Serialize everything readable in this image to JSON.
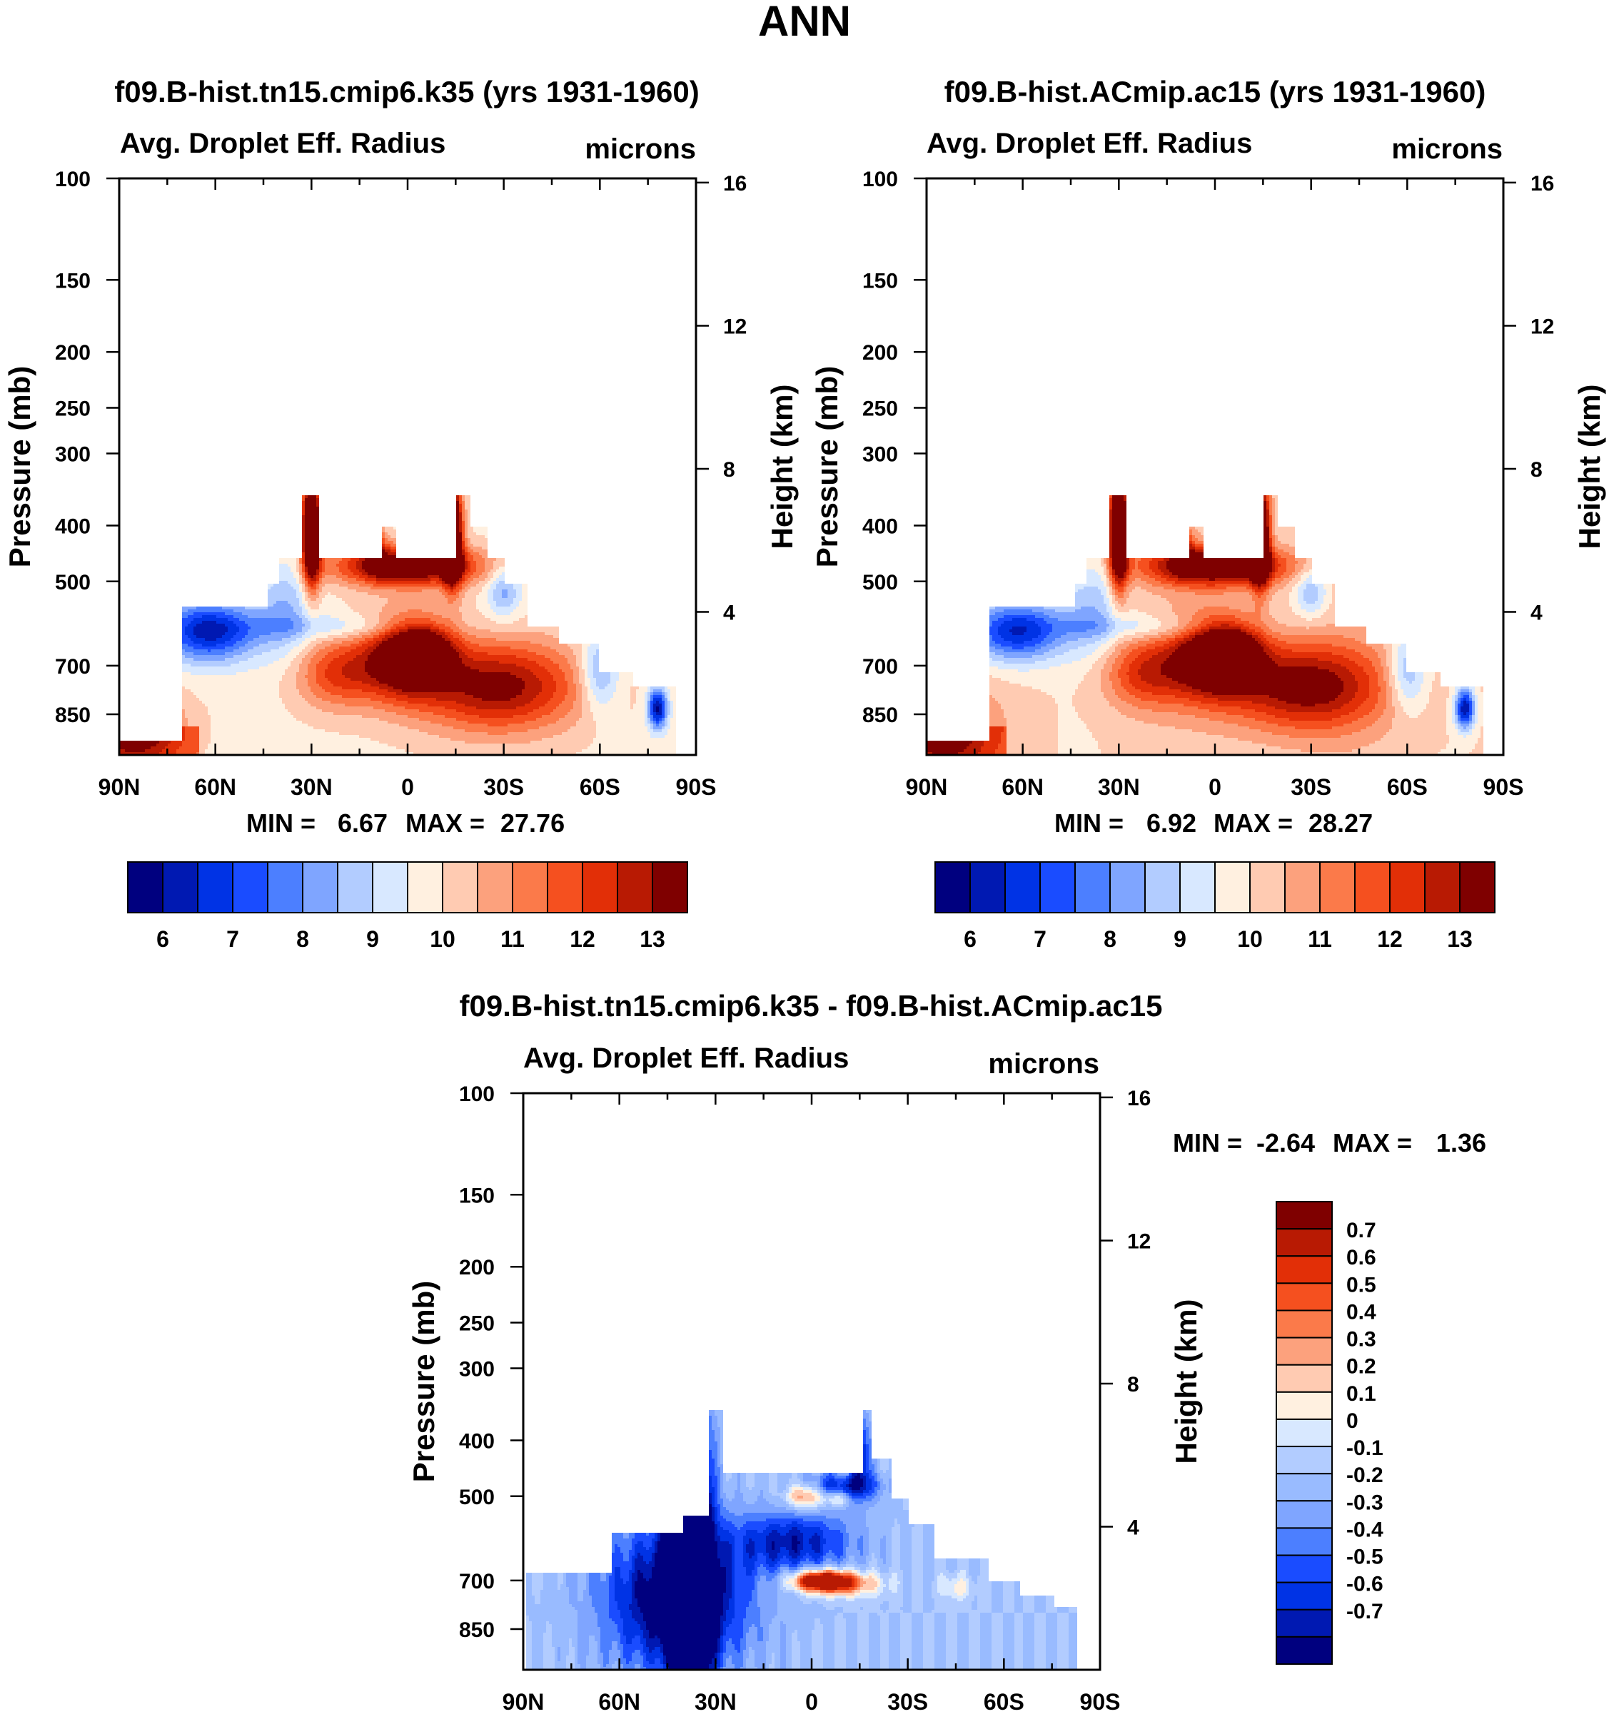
{
  "figure_title": "ANN",
  "colors": {
    "abs_palette": [
      "#00007f",
      "#0019b2",
      "#0033e5",
      "#1a4cff",
      "#4c7fff",
      "#7fa5ff",
      "#b2ccff",
      "#d8e8ff",
      "#fff0e0",
      "#ffcbb2",
      "#fca17d",
      "#fb7a4a",
      "#f5501f",
      "#e22f07",
      "#b81a03",
      "#7f0000"
    ],
    "diff_palette": [
      "#00007f",
      "#0019b2",
      "#0033e5",
      "#1a4cff",
      "#4c7fff",
      "#7fa5ff",
      "#99bbff",
      "#b2ccff",
      "#d8e8ff",
      "#fff0e0",
      "#ffcbb2",
      "#fca17d",
      "#fb7a4a",
      "#f5501f",
      "#e22f07",
      "#b81a03",
      "#7f0000"
    ]
  },
  "chart_data": [
    {
      "id": "panel1",
      "type": "heatmap",
      "title": "f09.B-hist.tn15.cmip6.k35 (yrs 1931-1960)",
      "subtitle_left": "Avg. Droplet Eff. Radius",
      "subtitle_right": "microns",
      "ylabel": "Pressure (mb)",
      "ylabel_right": "Height (km)",
      "x_ticks": [
        "90N",
        "60N",
        "30N",
        "0",
        "30S",
        "60S",
        "90S"
      ],
      "xlim": [
        90,
        -90
      ],
      "y_ticks": [
        "100",
        "150",
        "200",
        "250",
        "300",
        "400",
        "500",
        "700",
        "850"
      ],
      "y_tick_values": [
        100,
        150,
        200,
        250,
        300,
        400,
        500,
        700,
        850
      ],
      "ylim": [
        100,
        1000
      ],
      "height_ticks": [
        "16",
        "12",
        "8",
        "4"
      ],
      "height_tick_values": [
        16,
        12,
        8,
        4
      ],
      "stats": {
        "min_label": "MIN =",
        "min": "6.67",
        "max_label": "MAX =",
        "max": "27.76"
      },
      "colorbar": {
        "orientation": "horizontal",
        "labels": [
          "6",
          "7",
          "8",
          "9",
          "10",
          "11",
          "12",
          "13"
        ]
      },
      "levels": [
        5.75,
        6.25,
        6.75,
        7.25,
        7.75,
        8.25,
        8.75,
        9.25,
        9.75,
        10.25,
        10.75,
        11.25,
        11.75,
        12.25,
        12.75,
        13.25
      ]
    },
    {
      "id": "panel2",
      "type": "heatmap",
      "title": "f09.B-hist.ACmip.ac15 (yrs 1931-1960)",
      "subtitle_left": "Avg. Droplet Eff. Radius",
      "subtitle_right": "microns",
      "ylabel": "Pressure (mb)",
      "ylabel_right": "Height (km)",
      "x_ticks": [
        "90N",
        "60N",
        "30N",
        "0",
        "30S",
        "60S",
        "90S"
      ],
      "xlim": [
        90,
        -90
      ],
      "y_ticks": [
        "100",
        "150",
        "200",
        "250",
        "300",
        "400",
        "500",
        "700",
        "850"
      ],
      "y_tick_values": [
        100,
        150,
        200,
        250,
        300,
        400,
        500,
        700,
        850
      ],
      "ylim": [
        100,
        1000
      ],
      "height_ticks": [
        "16",
        "12",
        "8",
        "4"
      ],
      "height_tick_values": [
        16,
        12,
        8,
        4
      ],
      "stats": {
        "min_label": "MIN =",
        "min": "6.92",
        "max_label": "MAX =",
        "max": "28.27"
      },
      "colorbar": {
        "orientation": "horizontal",
        "labels": [
          "6",
          "7",
          "8",
          "9",
          "10",
          "11",
          "12",
          "13"
        ]
      },
      "levels": [
        5.75,
        6.25,
        6.75,
        7.25,
        7.75,
        8.25,
        8.75,
        9.25,
        9.75,
        10.25,
        10.75,
        11.25,
        11.75,
        12.25,
        12.75,
        13.25
      ]
    },
    {
      "id": "panel3",
      "type": "heatmap",
      "title": "f09.B-hist.tn15.cmip6.k35 - f09.B-hist.ACmip.ac15",
      "subtitle_left": "Avg. Droplet Eff. Radius",
      "subtitle_right": "microns",
      "ylabel": "Pressure (mb)",
      "ylabel_right": "Height (km)",
      "x_ticks": [
        "90N",
        "60N",
        "30N",
        "0",
        "30S",
        "60S",
        "90S"
      ],
      "xlim": [
        90,
        -90
      ],
      "y_ticks": [
        "100",
        "150",
        "200",
        "250",
        "300",
        "400",
        "500",
        "700",
        "850"
      ],
      "y_tick_values": [
        100,
        150,
        200,
        250,
        300,
        400,
        500,
        700,
        850
      ],
      "ylim": [
        100,
        1000
      ],
      "height_ticks": [
        "16",
        "12",
        "8",
        "4"
      ],
      "height_tick_values": [
        16,
        12,
        8,
        4
      ],
      "stats": {
        "min_label": "MIN =",
        "min": "-2.64",
        "max_label": "MAX =",
        "max": "1.36"
      },
      "colorbar": {
        "orientation": "vertical",
        "labels": [
          "0.7",
          "0.6",
          "0.5",
          "0.4",
          "0.3",
          "0.2",
          "0.1",
          "0",
          "-0.1",
          "-0.2",
          "-0.3",
          "-0.4",
          "-0.5",
          "-0.6",
          "-0.7"
        ]
      },
      "levels": [
        -0.7,
        -0.6,
        -0.5,
        -0.4,
        -0.3,
        -0.2,
        -0.1,
        0,
        0.1,
        0.2,
        0.3,
        0.4,
        0.5,
        0.6,
        0.7
      ]
    }
  ]
}
